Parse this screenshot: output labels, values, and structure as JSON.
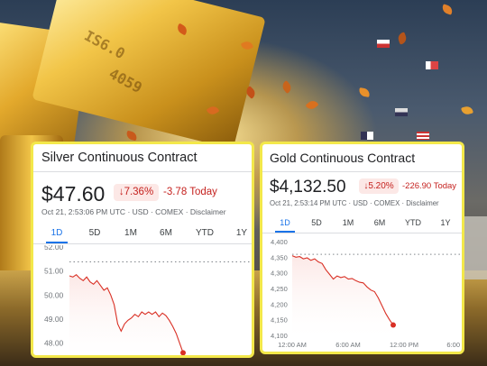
{
  "silver": {
    "title": "Silver Continuous Contract",
    "price": "$47.60",
    "change_pct": "7.36%",
    "change_abs": "-3.78 Today",
    "timestamp": "Oct 21, 2:53:06 PM UTC",
    "currency": "USD",
    "exchange": "COMEX",
    "disclaimer": "Disclaimer",
    "ranges": [
      "1D",
      "5D",
      "1M",
      "6M",
      "YTD",
      "1Y"
    ],
    "active_range": "1D",
    "chart_data": {
      "type": "area",
      "ylim": [
        47.5,
        52.0
      ],
      "yticks": [
        "52.00",
        "51.00",
        "50.00",
        "49.00",
        "48.00"
      ],
      "ytick_values": [
        52,
        51,
        50,
        49,
        48
      ],
      "previous_close": 51.38,
      "y": [
        50.8,
        50.75,
        50.85,
        50.7,
        50.6,
        50.75,
        50.55,
        50.45,
        50.6,
        50.4,
        50.2,
        50.3,
        50.0,
        49.6,
        48.8,
        48.5,
        48.8,
        48.95,
        49.05,
        49.2,
        49.1,
        49.3,
        49.2,
        49.3,
        49.2,
        49.3,
        49.1,
        49.25,
        49.15,
        48.95,
        48.7,
        48.4,
        48.0,
        47.6
      ],
      "colors": {
        "line": "#d93025",
        "fill": "#fce8e6",
        "baseline": "#80868b"
      }
    }
  },
  "gold": {
    "title": "Gold Continuous Contract",
    "price": "$4,132.50",
    "change_pct": "5.20%",
    "change_abs": "-226.90 Today",
    "timestamp": "Oct 21, 2:53:14 PM UTC",
    "currency": "USD",
    "exchange": "COMEX",
    "disclaimer": "Disclaimer",
    "ranges": [
      "1D",
      "5D",
      "1M",
      "6M",
      "YTD",
      "1Y"
    ],
    "active_range": "1D",
    "chart_data": {
      "type": "area",
      "ylim": [
        4100,
        4400
      ],
      "yticks": [
        "4,400",
        "4,350",
        "4,300",
        "4,250",
        "4,200",
        "4,150",
        "4,100"
      ],
      "ytick_values": [
        4400,
        4350,
        4300,
        4250,
        4200,
        4150,
        4100
      ],
      "xticks": [
        "12:00 AM",
        "6:00 AM",
        "12:00 PM",
        "6:00"
      ],
      "previous_close": 4359.4,
      "y": [
        4355,
        4350,
        4352,
        4345,
        4348,
        4340,
        4345,
        4335,
        4330,
        4310,
        4295,
        4280,
        4290,
        4285,
        4288,
        4280,
        4282,
        4275,
        4270,
        4268,
        4255,
        4245,
        4240,
        4220,
        4195,
        4170,
        4150,
        4133
      ],
      "colors": {
        "line": "#d93025",
        "fill": "#fce8e6",
        "baseline": "#80868b"
      }
    }
  }
}
